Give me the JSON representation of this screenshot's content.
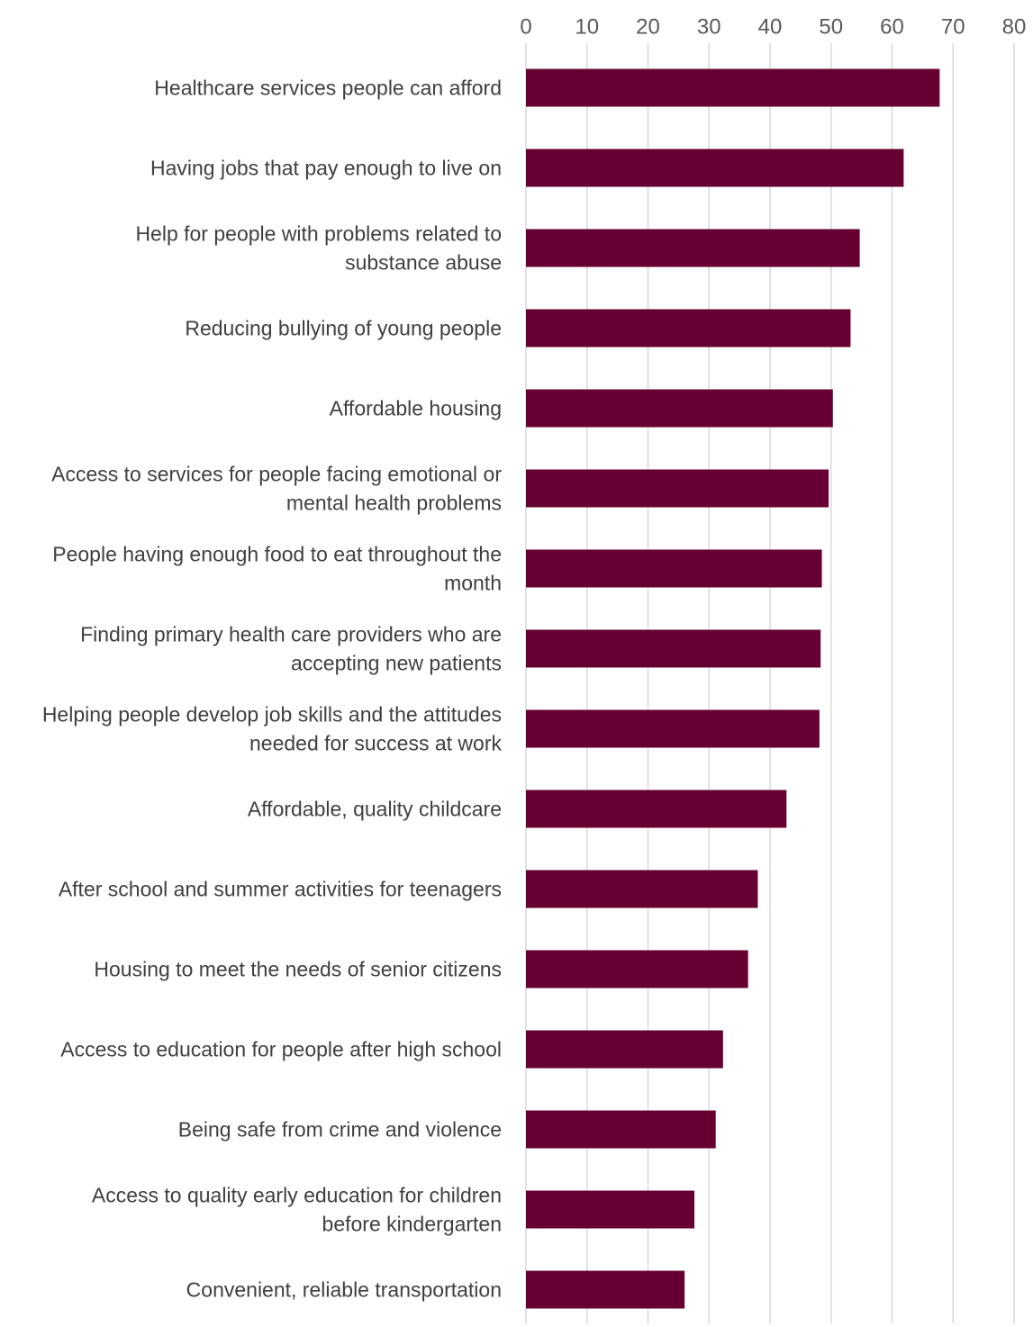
{
  "chart_data": {
    "type": "bar",
    "orientation": "horizontal",
    "x_axis_position": "top",
    "grid": true,
    "legend": "none",
    "categories": [
      "Healthcare services people can afford",
      "Having jobs that pay enough to live on",
      "Help for people with problems related to substance abuse",
      "Reducing bullying of young people",
      "Affordable housing",
      "Access to services for people facing emotional or mental health problems",
      "People having enough food to eat throughout the month",
      "Finding primary health care providers who are accepting new patients",
      "Helping people develop job skills and the attitudes needed for success at work",
      "Affordable, quality childcare",
      "After school and summer activities for teenagers",
      "Housing to meet the needs of senior citizens",
      "Access to education for people after high school",
      "Being safe from crime and violence",
      "Access to quality early education for children before kindergarten",
      "Convenient, reliable transportation"
    ],
    "category_label_lines": [
      [
        "Healthcare services people can afford"
      ],
      [
        "Having jobs that pay enough to live on"
      ],
      [
        "Help for people with problems related to",
        "substance abuse"
      ],
      [
        "Reducing bullying of young people"
      ],
      [
        "Affordable housing"
      ],
      [
        "Access to services for people facing emotional or",
        "mental health problems"
      ],
      [
        "People having enough food to eat throughout the",
        "month"
      ],
      [
        "Finding primary health care providers who are",
        "accepting new patients"
      ],
      [
        "Helping people develop job skills and the attitudes",
        "needed for success at work"
      ],
      [
        "Affordable, quality childcare"
      ],
      [
        "After school and summer activities for teenagers"
      ],
      [
        "Housing to meet the needs of senior citizens"
      ],
      [
        "Access to education for people after high school"
      ],
      [
        "Being safe from crime and violence"
      ],
      [
        "Access to quality early education for children",
        "before kindergarten"
      ],
      [
        "Convenient, reliable transportation"
      ]
    ],
    "values": [
      67.8,
      61.9,
      54.7,
      53.2,
      50.3,
      49.6,
      48.5,
      48.3,
      48.1,
      42.7,
      38.0,
      36.4,
      32.3,
      31.1,
      27.6,
      26.0
    ],
    "xlim": [
      0,
      80
    ],
    "xticks": [
      0,
      10,
      20,
      30,
      40,
      50,
      60,
      70,
      80
    ],
    "title": "",
    "xlabel": "",
    "ylabel": "",
    "bar_color": "#660033",
    "grid_color": "#d9d9d9"
  }
}
